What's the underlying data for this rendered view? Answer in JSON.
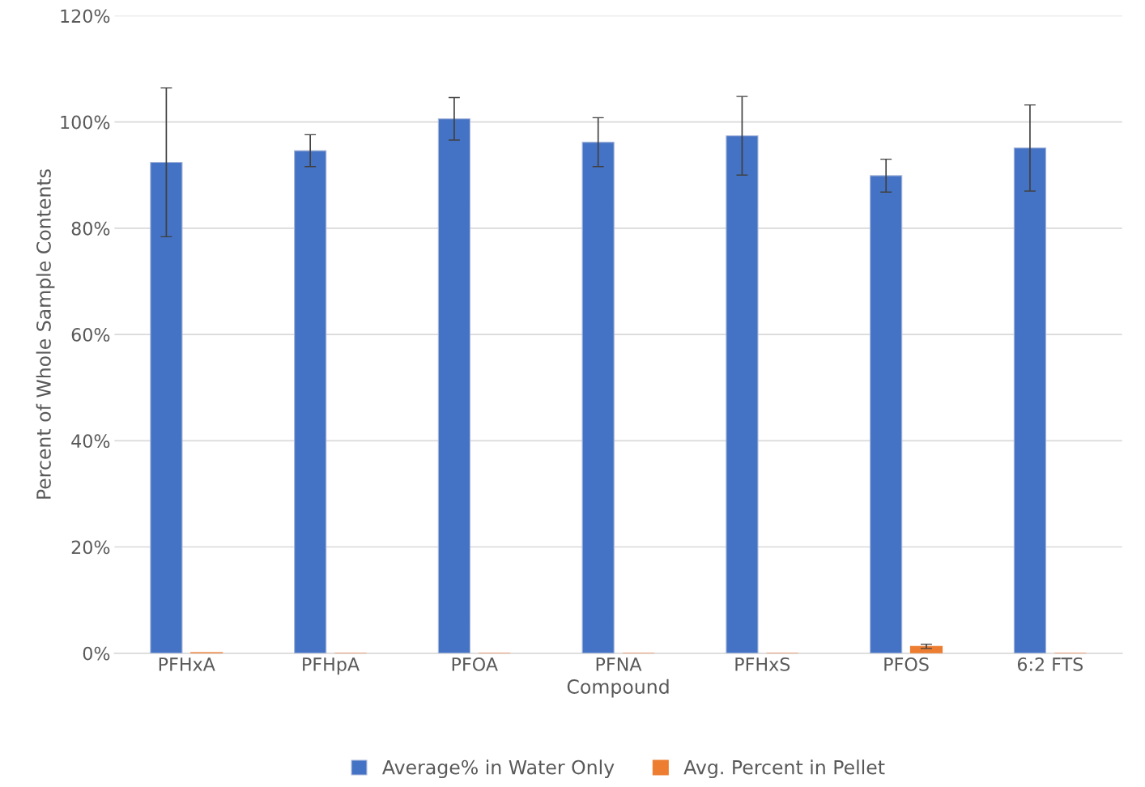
{
  "chart_data": {
    "type": "bar",
    "xlabel": "Compound",
    "ylabel": "Percent of Whole Sample Contents",
    "categories": [
      "PFHxA",
      "PFHpA",
      "PFOA",
      "PFNA",
      "PFHxS",
      "PFOS",
      "6:2 FTS"
    ],
    "series": [
      {
        "name": "Average% in Water Only",
        "color": "#4472c4",
        "values": [
          92.4,
          94.6,
          100.6,
          96.2,
          97.4,
          89.9,
          95.1
        ],
        "errors": [
          14,
          3,
          4,
          4.6,
          7.4,
          3.1,
          8.1
        ]
      },
      {
        "name": "Avg. Percent in Pellet",
        "color": "#ed7d31",
        "values": [
          0.1,
          0,
          0,
          0,
          0,
          1.3,
          0
        ],
        "errors": [
          null,
          null,
          null,
          null,
          null,
          0.4,
          null
        ]
      }
    ],
    "ylim": [
      0,
      120
    ],
    "yticks": [
      {
        "value": 0,
        "label": "0%"
      },
      {
        "value": 20,
        "label": "20%"
      },
      {
        "value": 40,
        "label": "40%"
      },
      {
        "value": 60,
        "label": "60%"
      },
      {
        "value": 80,
        "label": "80%"
      },
      {
        "value": 100,
        "label": "100%"
      },
      {
        "value": 120,
        "label": "120%"
      }
    ],
    "grid": "y",
    "legend": "bottom"
  }
}
